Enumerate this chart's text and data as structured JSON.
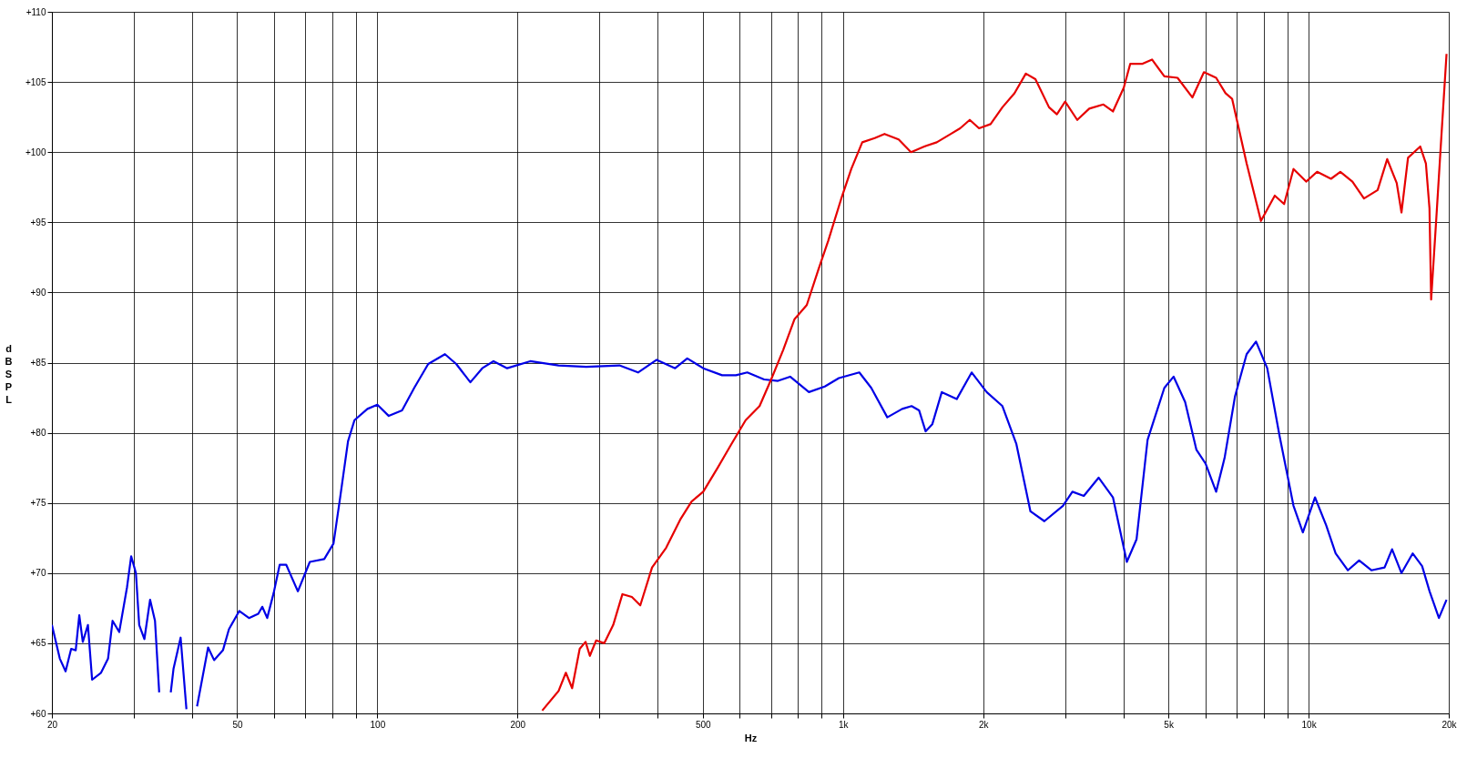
{
  "chart_data": {
    "type": "line",
    "xlabel": "Hz",
    "ylabel": "dB SPL",
    "log": "x",
    "grid": true,
    "line_style": "solid",
    "marker": "none",
    "xlim": [
      20,
      20000
    ],
    "ylim": [
      60,
      110
    ],
    "xticks": [
      20,
      {
        "value": 30,
        "label": null
      },
      {
        "value": 40,
        "label": null
      },
      50,
      {
        "value": 60,
        "label": null
      },
      {
        "value": 70,
        "label": null
      },
      {
        "value": 80,
        "label": null
      },
      {
        "value": 90,
        "label": null
      },
      100,
      200,
      {
        "value": 300,
        "label": null
      },
      {
        "value": 400,
        "label": null
      },
      500,
      {
        "value": 600,
        "label": null
      },
      {
        "value": 700,
        "label": null
      },
      {
        "value": 800,
        "label": null
      },
      {
        "value": 900,
        "label": null
      },
      {
        "value": 1000,
        "label": "1k"
      },
      {
        "value": 2000,
        "label": "2k"
      },
      {
        "value": 3000,
        "label": null
      },
      {
        "value": 4000,
        "label": null
      },
      {
        "value": 5000,
        "label": "5k"
      },
      {
        "value": 6000,
        "label": null
      },
      {
        "value": 7000,
        "label": null
      },
      {
        "value": 8000,
        "label": null
      },
      {
        "value": 9000,
        "label": null
      },
      {
        "value": 10000,
        "label": "10k"
      },
      {
        "value": 20000,
        "label": "20k"
      }
    ],
    "yticks": [
      {
        "value": 60,
        "label": "+60"
      },
      {
        "value": 65,
        "label": "+65"
      },
      {
        "value": 70,
        "label": "+70"
      },
      {
        "value": 75,
        "label": "+75"
      },
      {
        "value": 80,
        "label": "+80"
      },
      {
        "value": 85,
        "label": "+85"
      },
      {
        "value": 90,
        "label": "+90"
      },
      {
        "value": 95,
        "label": "+95"
      },
      {
        "value": 100,
        "label": "+100"
      },
      {
        "value": 105,
        "label": "+105"
      },
      {
        "value": 110,
        "label": "+110"
      }
    ],
    "series": [
      {
        "color": "#0000e6",
        "x": [
          20,
          20.8,
          21.4,
          22.0,
          22.5,
          22.9,
          23.3,
          23.9,
          24.4,
          25.5,
          26.4,
          27.0,
          27.9,
          29.0,
          29.6,
          30.3,
          30.8,
          31.6,
          32.5,
          33.3,
          34.0,
          34.5,
          36.0,
          36.5,
          37.8,
          38.9,
          40.0,
          41.0,
          43.3,
          44.6,
          46.6,
          48.0,
          50.5,
          53.0,
          55.5,
          56.6,
          58.0,
          59.9,
          61.7,
          63.7,
          67.5,
          71.6,
          76.9,
          80.5,
          83.2,
          86.5,
          89.3,
          95.2,
          100,
          105.8,
          113,
          120,
          128.6,
          139.7,
          147.7,
          158.4,
          168,
          177.6,
          190,
          213,
          245,
          281,
          331,
          363,
          398,
          436,
          463,
          501,
          550,
          589,
          623,
          677,
          725,
          770,
          845,
          914,
          980,
          1084,
          1150,
          1245,
          1340,
          1404,
          1457,
          1505,
          1555,
          1630,
          1755,
          1890,
          2035,
          2200,
          2357,
          2527,
          2707,
          2968,
          3110,
          3290,
          3540,
          3800,
          4070,
          4270,
          4510,
          4900,
          5130,
          5430,
          5740,
          6010,
          6330,
          6600,
          6950,
          7360,
          7710,
          8150,
          8660,
          9280,
          9720,
          10320,
          10910,
          11430,
          12140,
          12840,
          13640,
          14560,
          15110,
          15830,
          16730,
          17530,
          18190,
          19050,
          19780
        ],
        "values": [
          66.3,
          63.9,
          63.0,
          64.6,
          64.5,
          67.0,
          65.1,
          66.3,
          62.4,
          62.9,
          63.9,
          66.6,
          65.8,
          69.0,
          71.2,
          70.0,
          66.3,
          65.3,
          68.1,
          66.6,
          61.5,
          null,
          61.5,
          63.2,
          65.4,
          60.3,
          null,
          60.5,
          64.7,
          63.8,
          64.5,
          66.0,
          67.3,
          66.8,
          67.1,
          67.6,
          66.8,
          68.6,
          70.6,
          70.6,
          68.7,
          70.8,
          71.0,
          72.1,
          75.4,
          79.4,
          80.9,
          81.7,
          82.0,
          81.2,
          81.6,
          83.2,
          84.9,
          85.6,
          84.9,
          83.6,
          84.6,
          85.1,
          84.6,
          85.1,
          84.8,
          84.7,
          84.8,
          84.3,
          85.2,
          84.6,
          85.3,
          84.6,
          84.1,
          84.1,
          84.3,
          83.8,
          83.7,
          84.0,
          82.9,
          83.3,
          83.9,
          84.3,
          83.2,
          81.1,
          81.7,
          81.9,
          81.6,
          80.1,
          80.6,
          82.9,
          82.4,
          84.3,
          82.9,
          81.9,
          79.2,
          74.4,
          73.7,
          74.8,
          75.8,
          75.5,
          76.8,
          75.4,
          70.8,
          72.4,
          79.5,
          83.2,
          84.0,
          82.2,
          78.8,
          77.8,
          75.8,
          78.2,
          82.6,
          85.6,
          86.5,
          84.6,
          79.8,
          74.8,
          72.9,
          75.4,
          73.4,
          71.4,
          70.2,
          70.9,
          70.2,
          70.4,
          71.7,
          70.0,
          71.4,
          70.5,
          68.7,
          66.8,
          68.1
        ]
      },
      {
        "color": "#e60000",
        "x": [
          226,
          245,
          254,
          262,
          272,
          280,
          286,
          295,
          307,
          321,
          336,
          352,
          367,
          389,
          417,
          447,
          473,
          501,
          538,
          576,
          618,
          662,
          703,
          744,
          787,
          836,
          887,
          930,
          994,
          1042,
          1100,
          1170,
          1228,
          1317,
          1400,
          1495,
          1590,
          1705,
          1785,
          1872,
          1960,
          2075,
          2200,
          2335,
          2470,
          2590,
          2770,
          2880,
          3000,
          3185,
          3380,
          3625,
          3800,
          4010,
          4140,
          4400,
          4610,
          4900,
          5230,
          5630,
          5960,
          6330,
          6630,
          6850,
          7360,
          7900,
          8460,
          8860,
          9280,
          9880,
          10430,
          11170,
          11700,
          12420,
          13150,
          14070,
          14750,
          15460,
          15830,
          16350,
          17370,
          17860,
          18180,
          18330,
          18790,
          19230,
          19780
        ],
        "values": [
          60.2,
          61.6,
          62.9,
          61.8,
          64.6,
          65.1,
          64.1,
          65.2,
          65.0,
          66.3,
          68.5,
          68.3,
          67.7,
          70.4,
          71.8,
          73.8,
          75.1,
          75.8,
          77.5,
          79.2,
          80.9,
          81.9,
          83.9,
          85.9,
          88.1,
          89.1,
          91.7,
          93.7,
          96.8,
          98.8,
          100.7,
          101.0,
          101.3,
          100.9,
          100.0,
          100.4,
          100.7,
          101.3,
          101.7,
          102.3,
          101.7,
          102.0,
          103.2,
          104.2,
          105.6,
          105.2,
          103.2,
          102.7,
          103.6,
          102.3,
          103.1,
          103.4,
          102.9,
          104.6,
          106.3,
          106.3,
          106.6,
          105.4,
          105.3,
          103.9,
          105.7,
          105.3,
          104.2,
          103.8,
          99.2,
          95.1,
          96.9,
          96.3,
          98.8,
          97.9,
          98.6,
          98.1,
          98.6,
          97.9,
          96.7,
          97.3,
          99.5,
          97.8,
          95.7,
          99.6,
          100.4,
          99.2,
          96.0,
          89.5,
          95.1,
          100.5,
          107.0
        ]
      }
    ]
  }
}
